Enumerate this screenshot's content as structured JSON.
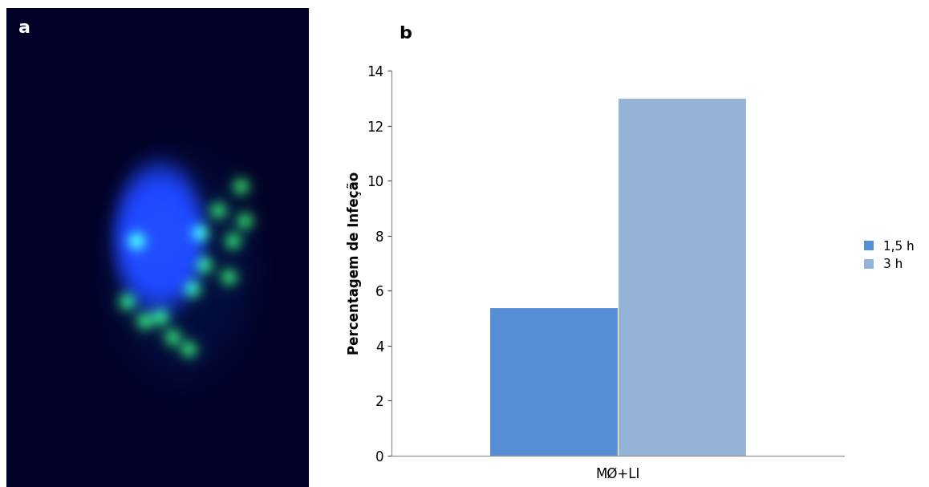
{
  "panel_labels": [
    "a",
    "b"
  ],
  "chart_data": {
    "type": "bar",
    "y_label": "Percentagem de Infeção",
    "categories": [
      "MØ+LI"
    ],
    "series": [
      {
        "name": "1,5 h",
        "color": "#558ed5",
        "values": [
          5.4
        ]
      },
      {
        "name": "3 h",
        "color": "#95b3d7",
        "values": [
          13
        ]
      }
    ],
    "ylim": [
      0,
      14
    ],
    "yticks": [
      0,
      2,
      4,
      6,
      8,
      10,
      12,
      14
    ],
    "grid": false,
    "legend": "right"
  }
}
